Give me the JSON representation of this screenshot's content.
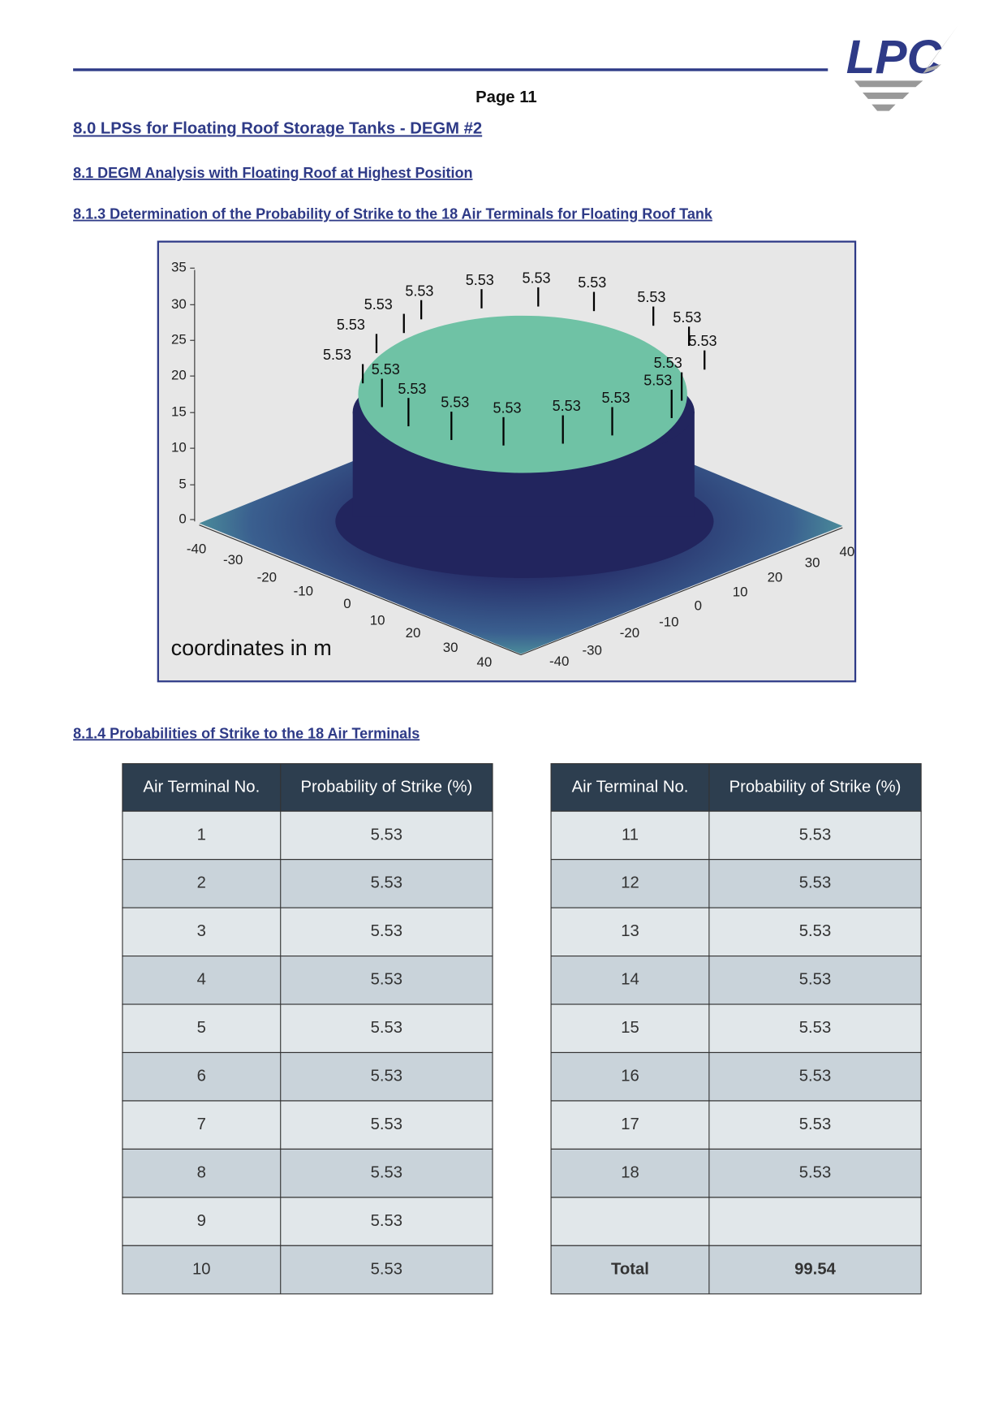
{
  "header": {
    "logo": "LPC",
    "page": "Page 11"
  },
  "headings": [
    "8.0 LPSs for Floating Roof  Storage Tanks - DEGM #2",
    "8.1 DEGM Analysis with Floating Roof at Highest Position",
    "8.1.3 Determination of the Probability of Strike to the 18 Air Terminals for Floating Roof Tank",
    "8.1.4 Probabilities of Strike to the 18 Air Terminals"
  ],
  "figure": {
    "z_ticks": [
      "35",
      "30",
      "25",
      "20",
      "15",
      "10",
      "5",
      "0"
    ],
    "x_ticks": [
      "-40",
      "-30",
      "-20",
      "-10",
      "0",
      "10",
      "20",
      "30",
      "40"
    ],
    "y_ticks": [
      "-40",
      "-30",
      "-20",
      "-10",
      "0",
      "10",
      "20",
      "30",
      "40"
    ],
    "terminal_labels": [
      "5.53",
      "5.53",
      "5.53",
      "5.53",
      "5.53",
      "5.53",
      "5.53",
      "5.53",
      "5.53",
      "5.53",
      "5.53",
      "5.53",
      "5.53",
      "5.53",
      "5.53",
      "5.53",
      "5.53",
      "5.53"
    ],
    "caption": "coordinates in m"
  },
  "tables": [
    {
      "header": [
        "Air Terminal No.",
        "Probability of Strike (%)"
      ],
      "rows": [
        [
          "1",
          "5.53"
        ],
        [
          "2",
          "5.53"
        ],
        [
          "3",
          "5.53"
        ],
        [
          "4",
          "5.53"
        ],
        [
          "5",
          "5.53"
        ],
        [
          "6",
          "5.53"
        ],
        [
          "7",
          "5.53"
        ],
        [
          "8",
          "5.53"
        ],
        [
          "9",
          "5.53"
        ],
        [
          "10",
          "5.53"
        ]
      ]
    },
    {
      "header": [
        "Air Terminal No.",
        "Probability of Strike (%)"
      ],
      "rows": [
        [
          "11",
          "5.53"
        ],
        [
          "12",
          "5.53"
        ],
        [
          "13",
          "5.53"
        ],
        [
          "14",
          "5.53"
        ],
        [
          "15",
          "5.53"
        ],
        [
          "16",
          "5.53"
        ],
        [
          "17",
          "5.53"
        ],
        [
          "18",
          "5.53"
        ]
      ],
      "total": [
        "Total",
        "99.54"
      ]
    }
  ]
}
